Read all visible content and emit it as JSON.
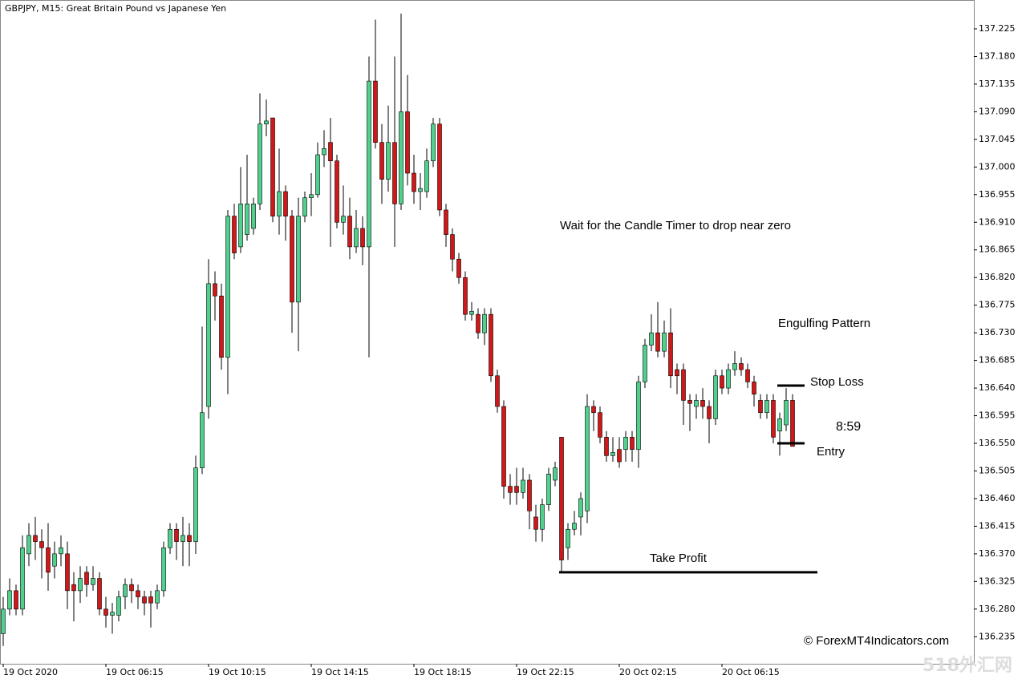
{
  "chart_data": {
    "type": "candlestick",
    "title": "GBPJPY, M15:  Great Britain Pound vs Japanese Yen",
    "categories": [
      "19 Oct 2020",
      null,
      null,
      null,
      null,
      null,
      null,
      null,
      null,
      null,
      null,
      null,
      null,
      null,
      null,
      null,
      "19 Oct 06:15",
      null,
      null,
      null,
      null,
      null,
      null,
      null,
      null,
      null,
      null,
      null,
      null,
      null,
      null,
      null,
      "19 Oct 10:15",
      null,
      null,
      null,
      null,
      null,
      null,
      null,
      null,
      null,
      null,
      null,
      null,
      null,
      null,
      null,
      "19 Oct 14:15",
      null,
      null,
      null,
      null,
      null,
      null,
      null,
      null,
      null,
      null,
      null,
      null,
      null,
      null,
      null,
      "19 Oct 18:15",
      null,
      null,
      null,
      null,
      null,
      null,
      null,
      null,
      null,
      null,
      null,
      null,
      null,
      null,
      null,
      "19 Oct 22:15",
      null,
      null,
      null,
      null,
      null,
      null,
      null,
      null,
      null,
      null,
      null,
      null,
      null,
      null,
      null,
      "20 Oct 02:15",
      null,
      null,
      null,
      null,
      null,
      null,
      null,
      null,
      null,
      null,
      null,
      null,
      null,
      null,
      null,
      "20 Oct 06:15",
      null,
      null,
      null,
      null,
      null,
      null,
      null,
      null,
      null,
      null,
      null
    ],
    "open": [
      136.24,
      136.28,
      136.31,
      136.28,
      136.37,
      136.4,
      136.39,
      136.38,
      136.35,
      136.37,
      136.37,
      136.32,
      136.31,
      136.34,
      136.32,
      136.33,
      136.28,
      136.27,
      136.27,
      136.3,
      136.32,
      136.31,
      136.3,
      136.3,
      136.29,
      136.31,
      136.38,
      136.41,
      136.39,
      136.4,
      136.39,
      136.51,
      136.61,
      136.81,
      136.79,
      136.69,
      136.92,
      136.87,
      136.89,
      136.9,
      136.94,
      137.07,
      137.08,
      136.92,
      136.96,
      136.92,
      136.78,
      136.92,
      136.95,
      136.955,
      137.02,
      137.04,
      137.01,
      136.91,
      136.92,
      136.87,
      136.9,
      136.87,
      137.14,
      137.04,
      136.98,
      137.04,
      136.94,
      137.09,
      136.99,
      136.96,
      136.96,
      137.01,
      137.07,
      136.93,
      136.89,
      136.85,
      136.82,
      136.76,
      136.76,
      136.73,
      136.76,
      136.66,
      136.61,
      136.48,
      136.48,
      136.47,
      136.49,
      136.43,
      136.41,
      136.45,
      136.49,
      136.56,
      136.38,
      136.41,
      136.43,
      136.44,
      136.61,
      136.6,
      136.56,
      136.53,
      136.54,
      136.54,
      136.56,
      136.54,
      136.65,
      136.71,
      136.73,
      136.7,
      136.73,
      136.67,
      136.67,
      136.62,
      136.61,
      136.62,
      136.61,
      136.59,
      136.66,
      136.64,
      136.67,
      136.68,
      136.67,
      136.65,
      136.62,
      136.6,
      136.62,
      136.57,
      136.58,
      136.62
    ],
    "high": [
      136.3,
      136.33,
      136.32,
      136.4,
      136.42,
      136.43,
      136.41,
      136.42,
      136.39,
      136.4,
      136.39,
      136.34,
      136.35,
      136.35,
      136.35,
      136.34,
      136.3,
      136.29,
      136.31,
      136.33,
      136.33,
      136.32,
      136.31,
      136.31,
      136.32,
      136.39,
      136.42,
      136.42,
      136.43,
      136.42,
      136.53,
      136.74,
      136.85,
      136.83,
      136.81,
      136.93,
      136.94,
      137.0,
      137.02,
      136.95,
      137.12,
      137.11,
      137.08,
      137.03,
      136.97,
      136.93,
      136.95,
      136.96,
      136.99,
      137.04,
      137.06,
      137.08,
      137.02,
      136.97,
      136.95,
      136.93,
      136.92,
      137.18,
      137.24,
      137.07,
      137.1,
      137.18,
      137.25,
      137.15,
      137.02,
      136.99,
      137.03,
      137.08,
      137.08,
      136.94,
      136.9,
      136.86,
      136.83,
      136.78,
      136.77,
      136.77,
      136.77,
      136.67,
      136.62,
      136.5,
      136.51,
      136.51,
      136.5,
      136.45,
      136.46,
      136.51,
      136.52,
      136.56,
      136.42,
      136.44,
      136.47,
      136.63,
      136.62,
      136.61,
      136.57,
      136.56,
      136.56,
      136.57,
      136.57,
      136.66,
      136.72,
      136.76,
      136.78,
      136.75,
      136.77,
      136.68,
      136.68,
      136.63,
      136.63,
      136.64,
      136.62,
      136.67,
      136.67,
      136.68,
      136.7,
      136.69,
      136.68,
      136.66,
      136.63,
      136.63,
      136.63,
      136.6,
      136.64,
      136.63
    ],
    "low": [
      136.22,
      136.27,
      136.27,
      136.27,
      136.35,
      136.36,
      136.33,
      136.31,
      136.33,
      136.35,
      136.28,
      136.26,
      136.29,
      136.3,
      136.31,
      136.27,
      136.25,
      136.24,
      136.26,
      136.28,
      136.29,
      136.28,
      136.27,
      136.25,
      136.28,
      136.3,
      136.37,
      136.36,
      136.35,
      136.35,
      136.37,
      136.5,
      136.59,
      136.75,
      136.67,
      136.63,
      136.85,
      136.86,
      136.88,
      136.89,
      136.93,
      137.05,
      136.91,
      136.89,
      136.88,
      136.73,
      136.7,
      136.91,
      136.92,
      136.95,
      137.0,
      136.87,
      136.9,
      136.89,
      136.85,
      136.86,
      136.84,
      136.69,
      137.03,
      136.94,
      136.96,
      136.87,
      136.93,
      136.97,
      136.94,
      136.93,
      136.95,
      137.0,
      136.92,
      136.87,
      136.83,
      136.81,
      136.75,
      136.75,
      136.72,
      136.71,
      136.65,
      136.6,
      136.46,
      136.45,
      136.45,
      136.46,
      136.41,
      136.39,
      136.39,
      136.44,
      136.48,
      136.34,
      136.36,
      136.4,
      136.4,
      136.42,
      136.57,
      136.55,
      136.52,
      136.52,
      136.51,
      136.52,
      136.52,
      136.51,
      136.64,
      136.7,
      136.69,
      136.69,
      136.64,
      136.63,
      136.58,
      136.57,
      136.59,
      136.59,
      136.55,
      136.58,
      136.63,
      136.63,
      136.66,
      136.66,
      136.64,
      136.61,
      136.59,
      136.59,
      136.55,
      136.53,
      136.57,
      136.545
    ],
    "close": [
      136.28,
      136.31,
      136.28,
      136.38,
      136.4,
      136.39,
      136.38,
      136.34,
      136.37,
      136.38,
      136.31,
      136.31,
      136.33,
      136.32,
      136.33,
      136.28,
      136.27,
      136.275,
      136.3,
      136.32,
      136.31,
      136.3,
      136.29,
      136.29,
      136.31,
      136.38,
      136.41,
      136.39,
      136.4,
      136.39,
      136.51,
      136.6,
      136.81,
      136.79,
      136.69,
      136.92,
      136.86,
      136.94,
      136.94,
      136.94,
      137.07,
      137.075,
      136.92,
      136.96,
      136.92,
      136.78,
      136.92,
      136.95,
      136.955,
      137.02,
      137.03,
      137.01,
      136.91,
      136.92,
      136.87,
      136.9,
      136.87,
      137.14,
      137.04,
      136.98,
      137.04,
      136.94,
      137.09,
      136.99,
      136.96,
      136.965,
      137.01,
      137.07,
      136.93,
      136.89,
      136.85,
      136.82,
      136.76,
      136.765,
      136.73,
      136.76,
      136.66,
      136.61,
      136.48,
      136.47,
      136.47,
      136.49,
      136.44,
      136.41,
      136.45,
      136.5,
      136.51,
      136.36,
      136.41,
      136.42,
      136.46,
      136.61,
      136.6,
      136.56,
      136.53,
      136.535,
      136.52,
      136.56,
      136.54,
      136.65,
      136.71,
      136.73,
      136.7,
      136.73,
      136.66,
      136.66,
      136.62,
      136.615,
      136.62,
      136.61,
      136.59,
      136.66,
      136.64,
      136.67,
      136.68,
      136.67,
      136.65,
      136.63,
      136.6,
      136.62,
      136.56,
      136.59,
      136.62,
      136.545
    ],
    "up_color": "#4fd08c",
    "down_color": "#d01818",
    "ylim": [
      136.191,
      137.272
    ],
    "yticks": [
      137.225,
      {
        "value": 137.18,
        "label": "137.180"
      },
      137.135,
      {
        "value": 137.09,
        "label": "137.090"
      },
      137.045,
      {
        "value": 137.0,
        "label": "137.000"
      },
      136.955,
      {
        "value": 136.91,
        "label": "136.910"
      },
      136.865,
      {
        "value": 136.82,
        "label": "136.820"
      },
      136.775,
      {
        "value": 136.73,
        "label": "136.730"
      },
      136.685,
      {
        "value": 136.64,
        "label": "136.640"
      },
      136.595,
      {
        "value": 136.55,
        "label": "136.550"
      },
      136.505,
      {
        "value": 136.46,
        "label": "136.460"
      },
      136.415,
      {
        "value": 136.37,
        "label": "136.370"
      },
      136.325,
      {
        "value": 136.28,
        "label": "136.280"
      },
      136.235
    ],
    "levels": [
      {
        "name": "Stop Loss",
        "value": 136.644
      },
      {
        "name": "Entry",
        "value": 136.55
      },
      {
        "name": "Take Profit",
        "value": 136.34
      }
    ],
    "annotations": [
      "Wait for the Candle Timer to drop near zero",
      "Engulfing Pattern"
    ],
    "timer": "8:59",
    "timer_color": "#4fb87c",
    "copyright": "© ForexMT4Indicators.com",
    "watermark": "518外汇网"
  }
}
